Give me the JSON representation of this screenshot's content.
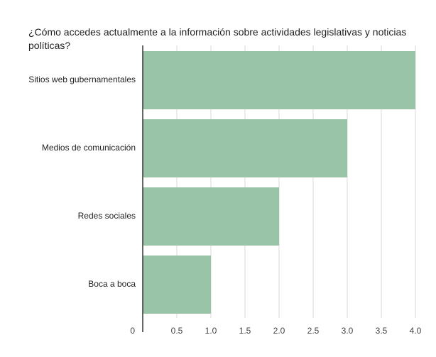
{
  "chart_data": {
    "type": "bar",
    "orientation": "horizontal",
    "title": "¿Cómo accedes actualmente a la información sobre actividades legislativas y noticias políticas?",
    "categories": [
      "Sitios web gubernamentales",
      "Medios de comunicación",
      "Redes sociales",
      "Boca a boca"
    ],
    "values": [
      4,
      3,
      2,
      1
    ],
    "xlabel": "",
    "ylabel": "",
    "xlim": [
      0,
      4
    ],
    "x_ticks": [
      "0",
      "0.5",
      "1.0",
      "1.5",
      "2.0",
      "2.5",
      "3.0",
      "3.5",
      "4.0"
    ],
    "grid": true,
    "legend": "none",
    "bar_color": "#9ac4a8",
    "grid_color": "#d9d9d9",
    "axis_color": "#333333"
  }
}
